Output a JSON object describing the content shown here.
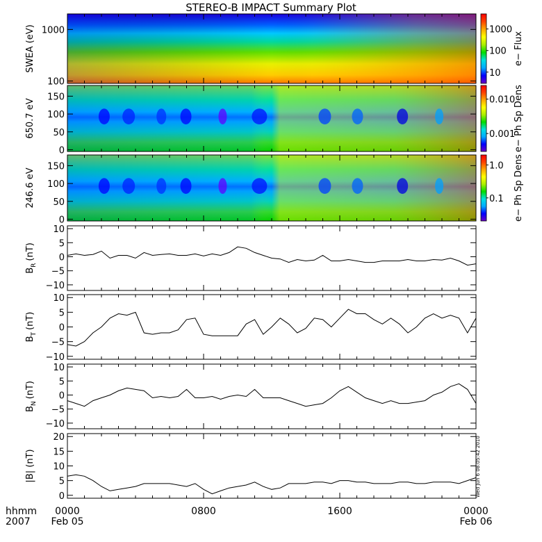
{
  "title": "STEREO-B IMPACT Summary Plot",
  "footer": {
    "hhmm_label": "hhmm",
    "year_label": "2007",
    "time_ticks": [
      "0000",
      "0800",
      "1600",
      "0000"
    ],
    "date_start": "Feb 05",
    "date_end": "Feb 06",
    "stamp": "Wed Jun  6 08:05:42 2010"
  },
  "chart_data": [
    {
      "id": "swea",
      "type": "heatmap",
      "ylabel": "SWEA (eV)",
      "yscale": "log",
      "ylim": [
        90,
        2000
      ],
      "yticks": [
        {
          "v": 100,
          "label": "100"
        },
        {
          "v": 1000,
          "label": "1000"
        }
      ],
      "colorbar": {
        "label": "e− Flux",
        "scale": "log",
        "range": [
          3,
          5000
        ],
        "ticks": [
          {
            "v": 10,
            "label": "10"
          },
          {
            "v": 100,
            "label": "100"
          },
          {
            "v": 1000,
            "label": "1000"
          }
        ]
      }
    },
    {
      "id": "pad650",
      "type": "heatmap",
      "ylabel": "650.7 eV",
      "ylim": [
        -5,
        180
      ],
      "yticks": [
        {
          "v": 0,
          "label": "0"
        },
        {
          "v": 50,
          "label": "50"
        },
        {
          "v": 100,
          "label": "100"
        },
        {
          "v": 150,
          "label": "150"
        }
      ],
      "colorbar": {
        "label": "e− Ph Sp Dens",
        "scale": "log",
        "range": [
          0.0003,
          0.025
        ],
        "ticks": [
          {
            "v": 0.001,
            "label": "0.001"
          },
          {
            "v": 0.01,
            "label": "0.010"
          }
        ]
      }
    },
    {
      "id": "pad246",
      "type": "heatmap",
      "ylabel": "246.6 eV",
      "ylim": [
        -5,
        180
      ],
      "yticks": [
        {
          "v": 0,
          "label": "0"
        },
        {
          "v": 50,
          "label": "50"
        },
        {
          "v": 100,
          "label": "100"
        },
        {
          "v": 150,
          "label": "150"
        }
      ],
      "colorbar": {
        "label": "e− Ph Sp Dens",
        "scale": "log",
        "range": [
          0.02,
          2.0
        ],
        "ticks": [
          {
            "v": 0.1,
            "label": "0.1"
          },
          {
            "v": 1.0,
            "label": "1.0"
          }
        ]
      }
    },
    {
      "id": "br",
      "type": "line",
      "ylabel": "B",
      "ysub": "R",
      "yunit": "(nT)",
      "ylim": [
        -12,
        11
      ],
      "yticks": [
        {
          "v": -10,
          "label": "−10"
        },
        {
          "v": -5,
          "label": "−5"
        },
        {
          "v": 0,
          "label": "0"
        },
        {
          "v": 5,
          "label": "5"
        },
        {
          "v": 10,
          "label": "10"
        }
      ],
      "x": [
        0,
        0.5,
        1,
        1.5,
        2,
        2.5,
        3,
        3.5,
        4,
        4.5,
        5,
        5.5,
        6,
        6.5,
        7,
        7.5,
        8,
        8.5,
        9,
        9.5,
        10,
        10.5,
        11,
        11.5,
        12,
        12.5,
        13,
        13.5,
        14,
        14.5,
        15,
        15.5,
        16,
        16.5,
        17,
        17.5,
        18,
        18.5,
        19,
        19.5,
        20,
        20.5,
        21,
        21.5,
        22,
        22.5,
        23,
        23.5,
        24
      ],
      "y": [
        0.5,
        1,
        0.5,
        0.8,
        2,
        -0.5,
        0.5,
        0.5,
        -0.5,
        1.5,
        0.5,
        0.8,
        1,
        0.5,
        0.5,
        1,
        0.3,
        1,
        0.5,
        1.5,
        3.5,
        3,
        1.5,
        0.5,
        -0.5,
        -0.8,
        -2,
        -1,
        -1.5,
        -1.2,
        0.5,
        -1.5,
        -1.5,
        -1,
        -1.5,
        -2,
        -2,
        -1.5,
        -1.5,
        -1.5,
        -1,
        -1.5,
        -1.5,
        -1,
        -1.2,
        -0.5,
        -1.5,
        -3,
        -2.5
      ]
    },
    {
      "id": "bt",
      "type": "line",
      "ylabel": "B",
      "ysub": "T",
      "yunit": "(nT)",
      "ylim": [
        -11,
        11
      ],
      "yticks": [
        {
          "v": -10,
          "label": "−10"
        },
        {
          "v": -5,
          "label": "−5"
        },
        {
          "v": 0,
          "label": "0"
        },
        {
          "v": 5,
          "label": "5"
        },
        {
          "v": 10,
          "label": "10"
        }
      ],
      "x": [
        0,
        0.5,
        1,
        1.5,
        2,
        2.5,
        3,
        3.5,
        4,
        4.5,
        5,
        5.5,
        6,
        6.5,
        7,
        7.5,
        8,
        8.5,
        9,
        9.5,
        10,
        10.5,
        11,
        11.5,
        12,
        12.5,
        13,
        13.5,
        14,
        14.5,
        15,
        15.5,
        16,
        16.5,
        17,
        17.5,
        18,
        18.5,
        19,
        19.5,
        20,
        20.5,
        21,
        21.5,
        22,
        22.5,
        23,
        23.5,
        24
      ],
      "y": [
        -6,
        -6.5,
        -5,
        -2,
        0,
        3,
        4.5,
        4,
        5,
        -2,
        -2.5,
        -2,
        -2,
        -1,
        2.5,
        3,
        -2.5,
        -3,
        -3,
        -3,
        -3,
        1,
        2.5,
        -2.5,
        0,
        3,
        1,
        -2,
        -0.5,
        3,
        2.5,
        0,
        3,
        6,
        4.5,
        4.5,
        2.5,
        1,
        3,
        1,
        -2,
        0,
        3,
        4.5,
        3,
        4,
        3,
        -2,
        3
      ]
    },
    {
      "id": "bn",
      "type": "line",
      "ylabel": "B",
      "ysub": "N",
      "yunit": "(nT)",
      "ylim": [
        -12,
        11
      ],
      "yticks": [
        {
          "v": -10,
          "label": "−10"
        },
        {
          "v": -5,
          "label": "−5"
        },
        {
          "v": 0,
          "label": "0"
        },
        {
          "v": 5,
          "label": "5"
        },
        {
          "v": 10,
          "label": "10"
        }
      ],
      "x": [
        0,
        0.5,
        1,
        1.5,
        2,
        2.5,
        3,
        3.5,
        4,
        4.5,
        5,
        5.5,
        6,
        6.5,
        7,
        7.5,
        8,
        8.5,
        9,
        9.5,
        10,
        10.5,
        11,
        11.5,
        12,
        12.5,
        13,
        13.5,
        14,
        14.5,
        15,
        15.5,
        16,
        16.5,
        17,
        17.5,
        18,
        18.5,
        19,
        19.5,
        20,
        20.5,
        21,
        21.5,
        22,
        22.5,
        23,
        23.5,
        24
      ],
      "y": [
        -2,
        -3,
        -4,
        -2,
        -1,
        0,
        1.5,
        2.5,
        2,
        1.5,
        -1,
        -0.5,
        -1,
        -0.5,
        2,
        -1,
        -1,
        -0.5,
        -1.5,
        -0.5,
        0,
        -0.5,
        2,
        -1,
        -1,
        -1,
        -2,
        -3,
        -4,
        -3.5,
        -3,
        -1,
        1.5,
        3,
        1,
        -1,
        -2,
        -3,
        -2,
        -3,
        -3,
        -2.5,
        -2,
        0,
        1,
        3,
        4,
        2,
        -3
      ]
    },
    {
      "id": "bmag",
      "type": "line",
      "ylabel": "|B| (nT)",
      "ylim": [
        -1,
        21
      ],
      "yticks": [
        {
          "v": 0,
          "label": "0"
        },
        {
          "v": 5,
          "label": "5"
        },
        {
          "v": 10,
          "label": "10"
        },
        {
          "v": 15,
          "label": "15"
        },
        {
          "v": 20,
          "label": "20"
        }
      ],
      "x": [
        0,
        0.5,
        1,
        1.5,
        2,
        2.5,
        3,
        3.5,
        4,
        4.5,
        5,
        5.5,
        6,
        6.5,
        7,
        7.5,
        8,
        8.5,
        9,
        9.5,
        10,
        10.5,
        11,
        11.5,
        12,
        12.5,
        13,
        13.5,
        14,
        14.5,
        15,
        15.5,
        16,
        16.5,
        17,
        17.5,
        18,
        18.5,
        19,
        19.5,
        20,
        20.5,
        21,
        21.5,
        22,
        22.5,
        23,
        23.5,
        24
      ],
      "y": [
        6.5,
        7,
        6.5,
        5,
        3,
        1.5,
        2,
        2.5,
        3,
        4,
        4,
        4,
        4,
        3.5,
        3,
        4,
        2,
        0.5,
        1.5,
        2.5,
        3,
        3.5,
        4.5,
        3,
        2,
        2.5,
        4,
        4,
        4,
        4.5,
        4.5,
        4,
        5,
        5,
        4.5,
        4.5,
        4,
        4,
        4,
        4.5,
        4.5,
        4,
        4,
        4.5,
        4.5,
        4.5,
        4,
        5,
        6
      ]
    }
  ]
}
